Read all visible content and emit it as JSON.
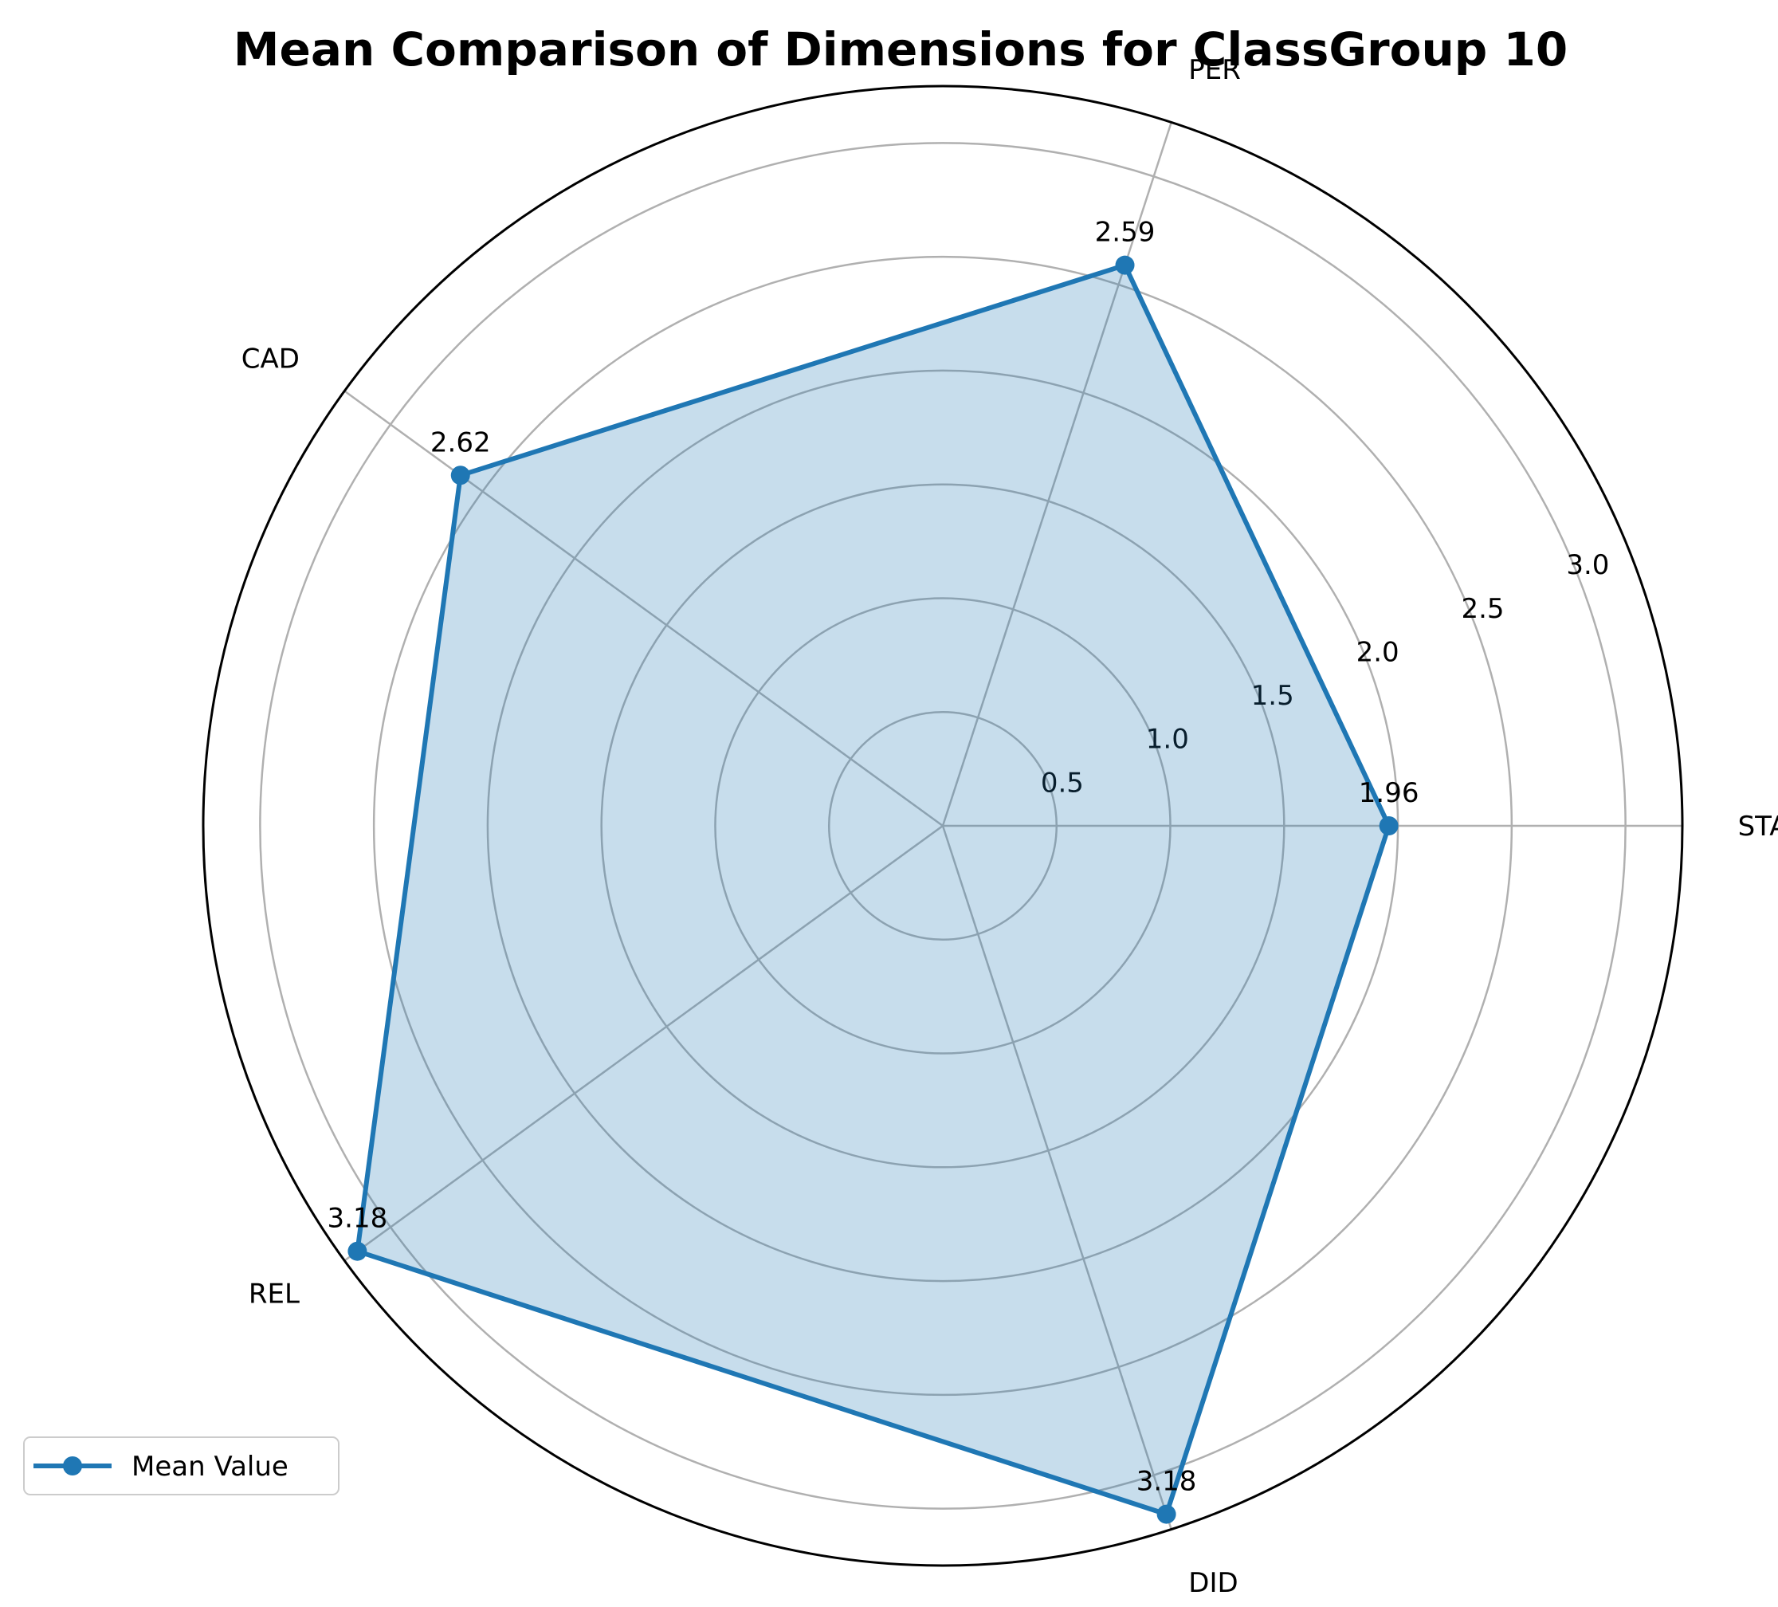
{
  "chart_data": {
    "type": "radar",
    "title": "Mean Comparison of Dimensions for ClassGroup 10",
    "categories": [
      "STA",
      "PER",
      "CAD",
      "REL",
      "DID"
    ],
    "series": [
      {
        "name": "Mean Value",
        "values": [
          1.96,
          2.59,
          2.62,
          3.18,
          3.18
        ],
        "color": "#1f77b4",
        "fill": "#1f77b4"
      }
    ],
    "value_labels": [
      "1.96",
      "2.59",
      "2.62",
      "3.18",
      "3.18"
    ],
    "radial_ticks": [
      0.5,
      1.0,
      1.5,
      2.0,
      2.5,
      3.0
    ],
    "radial_tick_labels": [
      "0.5",
      "1.0",
      "1.5",
      "2.0",
      "2.5",
      "3.0"
    ],
    "rlim": [
      0,
      3.25
    ],
    "grid": true,
    "legend": "lower-left"
  }
}
